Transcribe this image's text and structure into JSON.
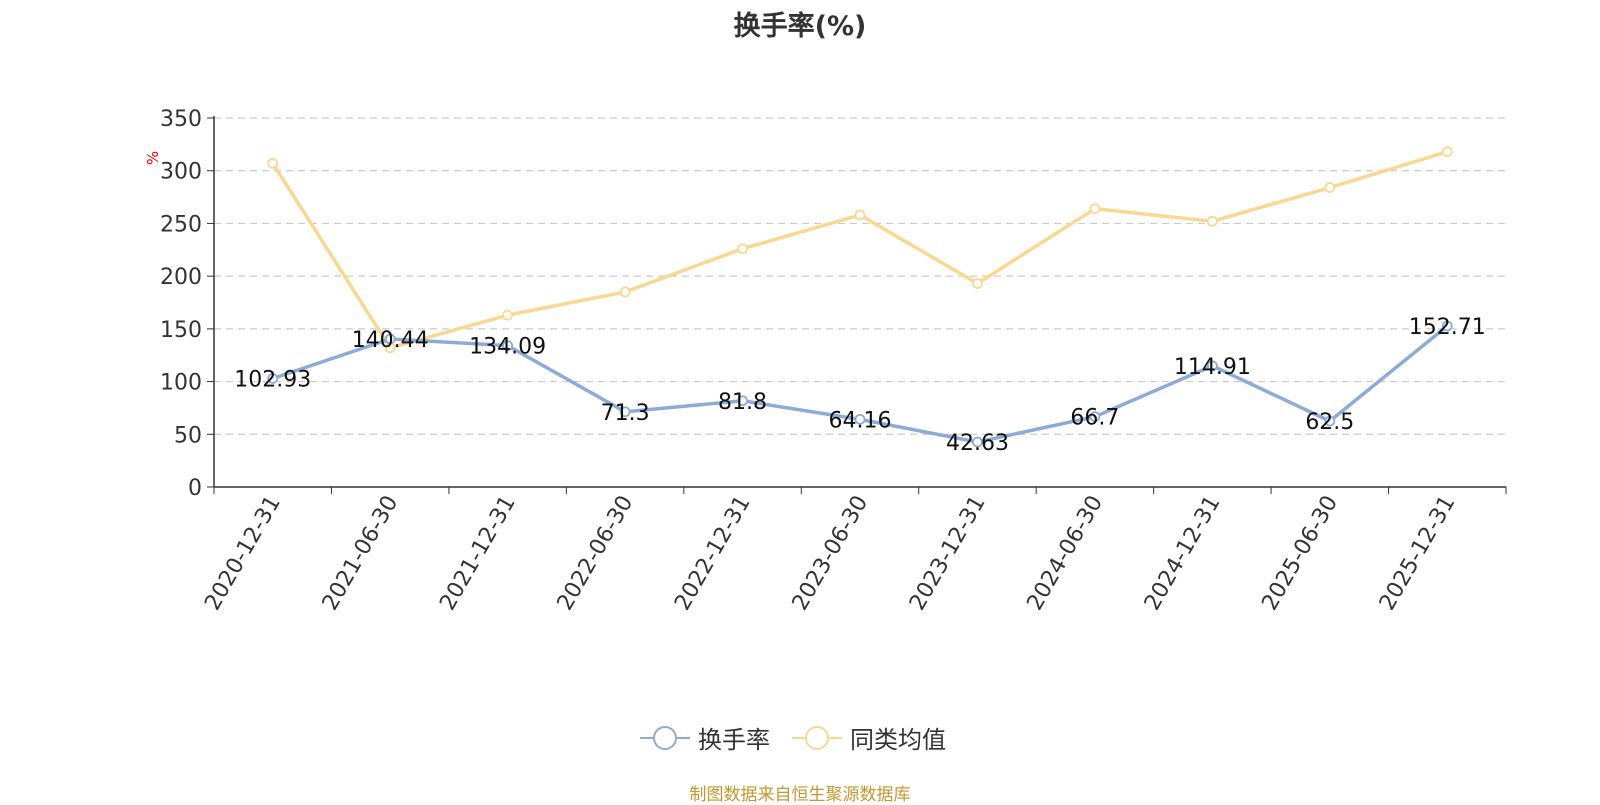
{
  "chart_data": {
    "type": "line",
    "title": "换手率(%)",
    "ylabel": "%",
    "ylim": [
      0,
      350
    ],
    "yticks": [
      0,
      50,
      100,
      150,
      200,
      250,
      300,
      350
    ],
    "grid": true,
    "legend_position": "bottom",
    "categories": [
      "2020-12-31",
      "2021-06-30",
      "2021-12-31",
      "2022-06-30",
      "2022-12-31",
      "2023-06-30",
      "2023-12-31",
      "2024-06-30",
      "2024-12-31",
      "2025-06-30",
      "2025-12-31"
    ],
    "series": [
      {
        "name": "换手率",
        "color": "#8eaad8",
        "values": [
          102.93,
          140.44,
          134.09,
          71.3,
          81.8,
          64.16,
          42.63,
          66.7,
          114.91,
          62.5,
          152.71
        ],
        "labels": [
          "102.93",
          "140.44",
          "134.09",
          "71.3",
          "81.8",
          "64.16",
          "42.63",
          "66.7",
          "114.91",
          "62.5",
          "152.71"
        ]
      },
      {
        "name": "同类均值",
        "color": "#fad891",
        "values": [
          307,
          132,
          163,
          185,
          226,
          258,
          193,
          264,
          252,
          284,
          318
        ]
      }
    ]
  },
  "source_note": "制图数据来自恒生聚源数据库"
}
